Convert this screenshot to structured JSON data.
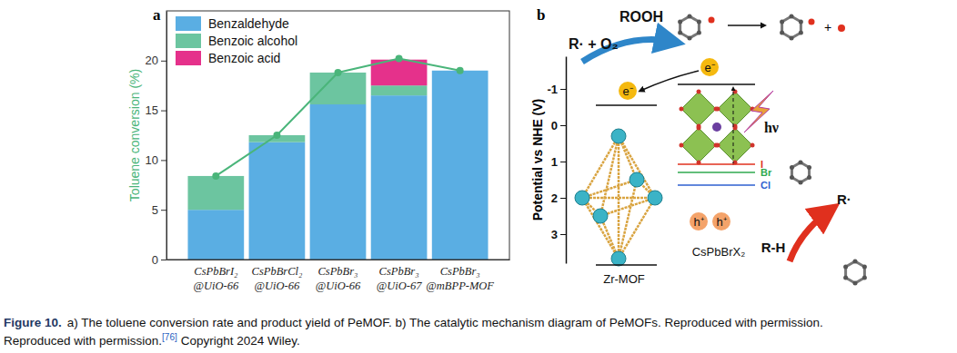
{
  "chart_data": {
    "type": "bar",
    "stacked": true,
    "categories": [
      "CsPbBrI₂@UiO-66",
      "CsPbBrCl₂@UiO-66",
      "CsPbBr₃@UiO-66",
      "CsPbBr₃@UiO-67",
      "CsPbBr₃@mBPP-MOF"
    ],
    "series": [
      {
        "name": "Benzaldehyde",
        "color": "#5aaee3",
        "values": [
          5.0,
          11.8,
          15.6,
          16.5,
          19.0
        ]
      },
      {
        "name": "Benzoic alcohol",
        "color": "#6cc5a0",
        "values": [
          3.4,
          0.7,
          3.2,
          1.0,
          0
        ]
      },
      {
        "name": "Benzoic acid",
        "color": "#e5318b",
        "values": [
          0,
          0,
          0,
          2.6,
          0
        ]
      },
      {
        "type": "line",
        "color": "#4ab57a",
        "marker": "circle",
        "values": [
          8.4,
          12.5,
          18.8,
          20.2,
          19.0
        ]
      }
    ],
    "y_label": "Toluene conversion (%)",
    "ylim": [
      0,
      25
    ],
    "yticks": [
      0,
      5,
      10,
      15,
      20
    ],
    "legend": "upper left"
  },
  "figure": {
    "panels": [
      "a",
      "b"
    ]
  },
  "diagram": {
    "axis_label": "Potential vs NHE (V)",
    "ylim": [
      -1.9,
      3.8
    ],
    "yticks": [
      -1,
      0,
      1,
      2,
      3
    ],
    "rooh": "ROOH",
    "radical_o2": "R· + O₂",
    "electron": "e⁻",
    "photon": "hν",
    "halides": [
      "I",
      "Br",
      "Cl"
    ],
    "hole": "h⁺",
    "radical": "R·",
    "substrate": "R-H",
    "mof": "Zr-MOF",
    "perovskite": "CsPbBrX₂"
  },
  "caption": {
    "label": "Figure 10.",
    "line1": "a) The toluene conversion rate and product yield of PeMOF. b) The catalytic mechanism diagram of PeMOFs. Reproduced with permission.",
    "line2_start": "Reproduced with permission.",
    "ref": "[76]",
    "line2_end": "Copyright 2024 Wiley."
  }
}
